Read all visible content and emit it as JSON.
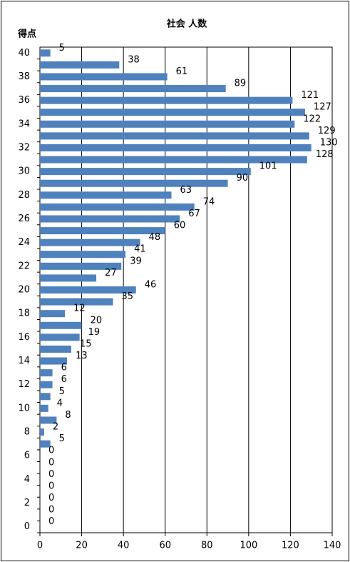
{
  "chart_data": {
    "type": "bar",
    "orientation": "horizontal",
    "title": "社会 人数",
    "y_label": "得点",
    "categories": [
      "40",
      null,
      "38",
      null,
      "36",
      null,
      "34",
      null,
      "32",
      null,
      "30",
      null,
      "28",
      null,
      "26",
      null,
      "24",
      null,
      "22",
      null,
      "20",
      null,
      "18",
      null,
      "16",
      null,
      "14",
      null,
      "12",
      null,
      "10",
      null,
      "8",
      null,
      "6",
      null,
      "4",
      null,
      "2",
      null,
      "0"
    ],
    "values": [
      5,
      38,
      61,
      89,
      121,
      127,
      122,
      129,
      130,
      128,
      101,
      90,
      63,
      74,
      67,
      60,
      48,
      41,
      39,
      27,
      46,
      35,
      12,
      20,
      19,
      15,
      13,
      6,
      6,
      5,
      4,
      8,
      2,
      5,
      0,
      0,
      0,
      0,
      0,
      0,
      0
    ],
    "color": "#4f81bd",
    "xlim": [
      0,
      140
    ],
    "xticks": [
      0,
      20,
      40,
      60,
      80,
      100,
      120,
      140
    ],
    "grid": true
  }
}
